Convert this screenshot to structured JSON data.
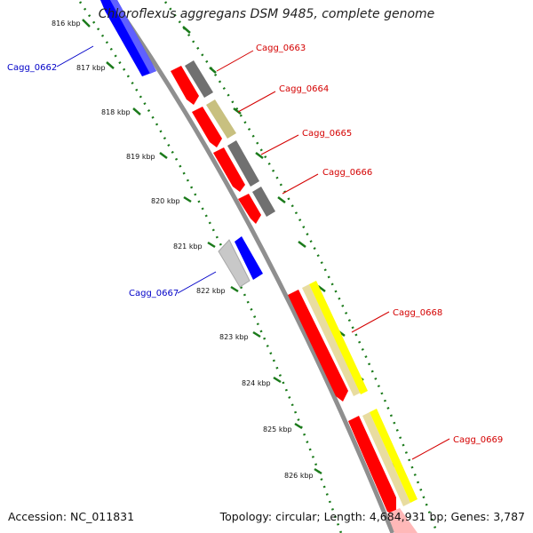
{
  "title": "Chloroflexus aggregans DSM 9485, complete genome",
  "footer": {
    "accession": "Accession: NC_011831",
    "summary": "Topology: circular; Length: 4,684,931 bp; Genes: 3,787"
  },
  "colors": {
    "backbone": "#8f8f8f",
    "tick": "#1a7a1a",
    "forward_label": "#d40000",
    "reverse_label": "#0000c8",
    "gene_red": "#ff0000",
    "gene_blue": "#0000ff",
    "gene_gray": "#707070",
    "gene_lightgray": "#c8c8c8",
    "gene_khaki": "#c8c080",
    "gene_yellow": "#ffff00",
    "gene_paleyellow": "#e8dca0"
  },
  "kbp_labels": [
    "816 kbp",
    "817 kbp",
    "818 kbp",
    "819 kbp",
    "820 kbp",
    "821 kbp",
    "822 kbp",
    "823 kbp",
    "824 kbp",
    "825 kbp",
    "826 kbp"
  ],
  "gene_labels": [
    {
      "text": "Cagg_0662",
      "strand": "reverse"
    },
    {
      "text": "Cagg_0663",
      "strand": "forward"
    },
    {
      "text": "Cagg_0664",
      "strand": "forward"
    },
    {
      "text": "Cagg_0665",
      "strand": "forward"
    },
    {
      "text": "Cagg_0666",
      "strand": "forward"
    },
    {
      "text": "Cagg_0667",
      "strand": "reverse"
    },
    {
      "text": "Cagg_0668",
      "strand": "forward"
    },
    {
      "text": "Cagg_0669",
      "strand": "forward"
    }
  ]
}
